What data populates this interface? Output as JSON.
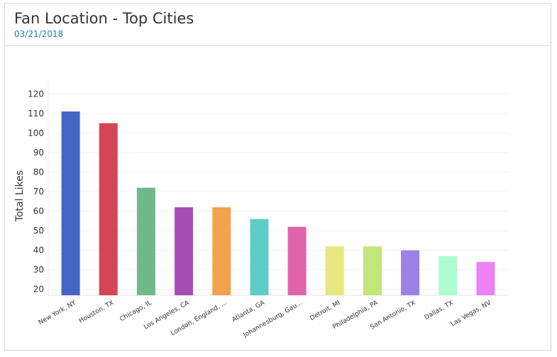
{
  "header": {
    "title": "Fan Location - Top Cities",
    "date": "03/21/2018"
  },
  "chart_data": {
    "type": "bar",
    "title": "Fan Location - Top Cities",
    "subtitle": "03/21/2018",
    "xlabel": "",
    "ylabel": "Total Likes",
    "ylim": [
      17,
      127
    ],
    "yticks": [
      20,
      30,
      40,
      50,
      60,
      70,
      80,
      90,
      100,
      110,
      120
    ],
    "grid": true,
    "categories": [
      "New York, NY",
      "Houston, TX",
      "Chicago, IL",
      "Los Angeles, CA",
      "London, England, ...",
      "Atlanta, GA",
      "Johannesburg, Gau...",
      "Detroit, MI",
      "Philadelphia, PA",
      "San Antonio, TX",
      "Dallas, TX",
      "Las Vegas, NV"
    ],
    "values": [
      111,
      105,
      72,
      62,
      62,
      56,
      52,
      42,
      42,
      40,
      37,
      34
    ],
    "colors": [
      "#4565c5",
      "#d64553",
      "#6fb88a",
      "#a64db3",
      "#f0a24e",
      "#5ecdc4",
      "#e163ab",
      "#e6e882",
      "#c1e67a",
      "#9c80e6",
      "#acfdcf",
      "#ed82f5"
    ]
  }
}
